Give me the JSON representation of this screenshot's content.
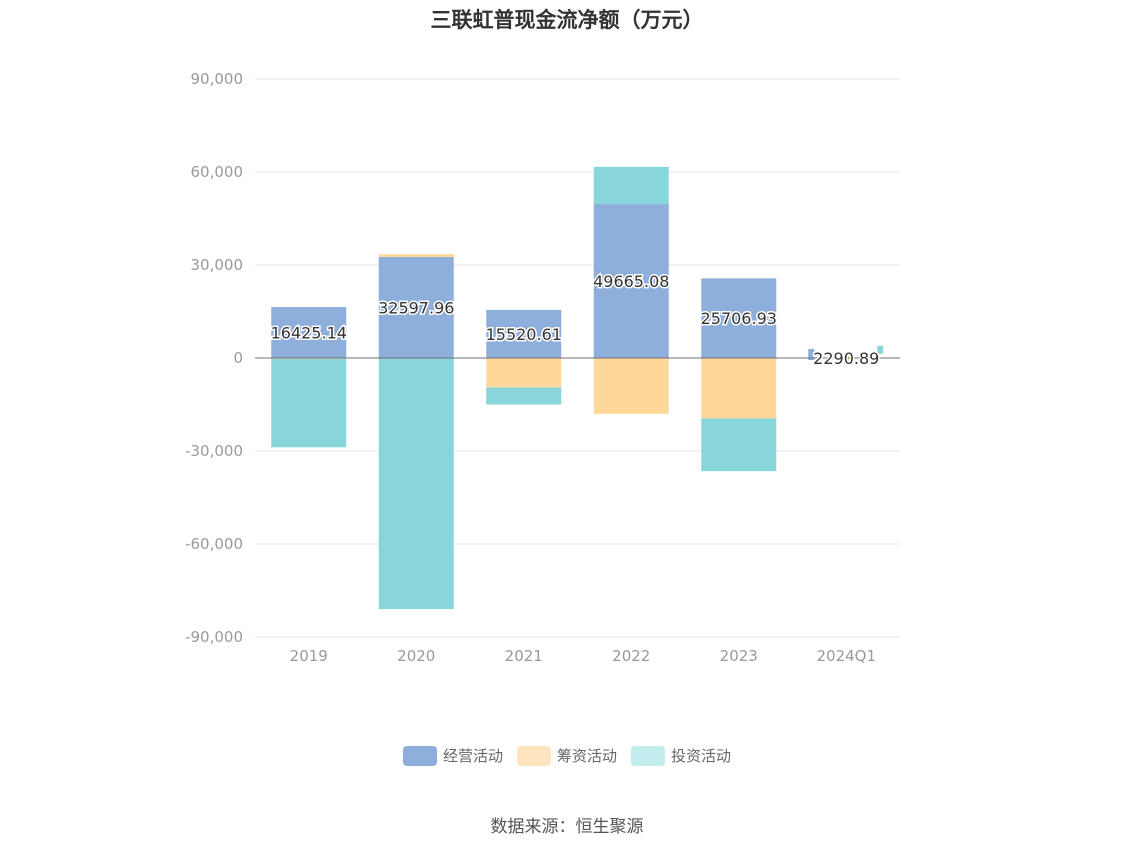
{
  "chart_data": {
    "type": "bar",
    "stacked": true,
    "title": "三联虹普现金流净额（万元）",
    "xlabel": "",
    "ylabel": "",
    "categories": [
      "2019",
      "2020",
      "2021",
      "2022",
      "2023",
      "2024Q1"
    ],
    "ylim": [
      -90000,
      90000
    ],
    "yticks": [
      90000,
      60000,
      30000,
      0,
      -30000,
      -60000,
      -90000
    ],
    "ytick_labels": [
      "90,000",
      "60,000",
      "30,000",
      "0",
      "-30,000",
      "-60,000",
      "-90,000"
    ],
    "grid": true,
    "legend_position": "bottom",
    "series": [
      {
        "name": "经营活动",
        "color": "#8eaedb",
        "values": [
          16425.14,
          32597.96,
          15520.61,
          49665.08,
          25706.93,
          2290.89
        ],
        "labels": [
          "16425.14",
          "32597.96",
          "15520.61",
          "49665.08",
          "25706.93",
          "2290.89"
        ]
      },
      {
        "name": "筹资活动",
        "color": "#ffd899",
        "values": [
          -300,
          900,
          -9500,
          -18000,
          -19500,
          -300
        ]
      },
      {
        "name": "投资活动",
        "color": "#88d6da",
        "values": [
          -28500,
          -81000,
          -5500,
          12000,
          -17000,
          1000
        ]
      }
    ],
    "legend_colors": [
      "#8eaedb",
      "#ffe5bf",
      "#c2ecee"
    ]
  },
  "source": "数据来源：恒生聚源"
}
